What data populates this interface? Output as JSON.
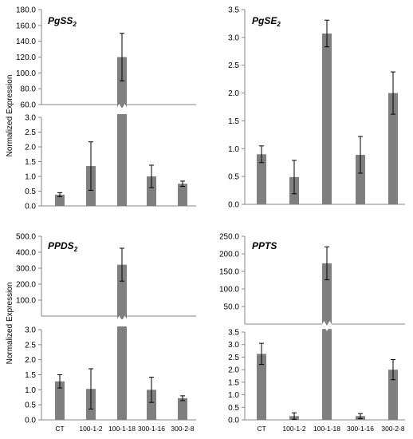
{
  "figure": {
    "ylabel": "Normalized Expression",
    "categories": [
      "CT",
      "100-1-2",
      "100-1-18",
      "300-1-16",
      "300-2-8"
    ],
    "bar_color": "#7f7f7f",
    "axis_color": "#868686"
  },
  "chart_data": [
    {
      "type": "bar",
      "title": "PgSS",
      "title_subscript": "2",
      "ylabel": "Normalized Expression",
      "categories": [
        "CT",
        "100-1-2",
        "100-1-18",
        "300-1-16",
        "300-2-8"
      ],
      "values": [
        0.38,
        1.35,
        120.0,
        1.0,
        0.75
      ],
      "errors": [
        0.07,
        0.82,
        30.0,
        0.38,
        0.09
      ],
      "y_break": true,
      "lower_ylim": [
        0,
        3.0
      ],
      "lower_ticks": [
        "0.0",
        "0.5",
        "1.0",
        "1.5",
        "2.0",
        "2.5",
        "3.0"
      ],
      "upper_ylim": [
        60,
        180
      ],
      "upper_ticks": [
        "60.0",
        "80.0",
        "100.0",
        "120.0",
        "140.0",
        "160.0",
        "180.0"
      ]
    },
    {
      "type": "bar",
      "title": "PgSE",
      "title_subscript": "2",
      "ylabel": "",
      "categories": [
        "CT",
        "100-1-2",
        "100-1-18",
        "300-1-16",
        "300-2-8"
      ],
      "values": [
        0.9,
        0.49,
        3.07,
        0.89,
        2.0
      ],
      "errors": [
        0.15,
        0.3,
        0.24,
        0.33,
        0.38
      ],
      "y_break": false,
      "ylim": [
        0,
        3.5
      ],
      "ticks": [
        "0.0",
        "0.5",
        "1.0",
        "1.5",
        "2.0",
        "2.5",
        "3.0",
        "3.5"
      ]
    },
    {
      "type": "bar",
      "title": "PPDS",
      "title_subscript": "2",
      "ylabel": "Normalized Expression",
      "categories": [
        "CT",
        "100-1-2",
        "100-1-18",
        "300-1-16",
        "300-2-8"
      ],
      "values": [
        1.28,
        1.03,
        322.0,
        1.0,
        0.72
      ],
      "errors": [
        0.22,
        0.67,
        103.0,
        0.42,
        0.08
      ],
      "y_break": true,
      "lower_ylim": [
        0,
        3.0
      ],
      "lower_ticks": [
        "0.0",
        "0.5",
        "1.0",
        "1.5",
        "2.0",
        "2.5",
        "3.0"
      ],
      "upper_ylim": [
        0,
        500
      ],
      "upper_ticks": [
        "100.0",
        "200.0",
        "300.0",
        "400.0",
        "500.0"
      ]
    },
    {
      "type": "bar",
      "title": "PPTS",
      "title_subscript": "",
      "ylabel": "",
      "categories": [
        "CT",
        "100-1-2",
        "100-1-18",
        "300-1-16",
        "300-2-8"
      ],
      "values": [
        2.63,
        0.15,
        173.0,
        0.15,
        2.0
      ],
      "errors": [
        0.42,
        0.13,
        47.0,
        0.1,
        0.4
      ],
      "y_break": true,
      "lower_ylim": [
        0,
        3.5
      ],
      "lower_ticks": [
        "0.0",
        "0.5",
        "1.0",
        "1.5",
        "2.0",
        "2.5",
        "3.0",
        "3.5"
      ],
      "upper_ylim": [
        0,
        250
      ],
      "upper_ticks": [
        "50.0",
        "100.0",
        "150.0",
        "200.0",
        "250.0"
      ]
    }
  ]
}
